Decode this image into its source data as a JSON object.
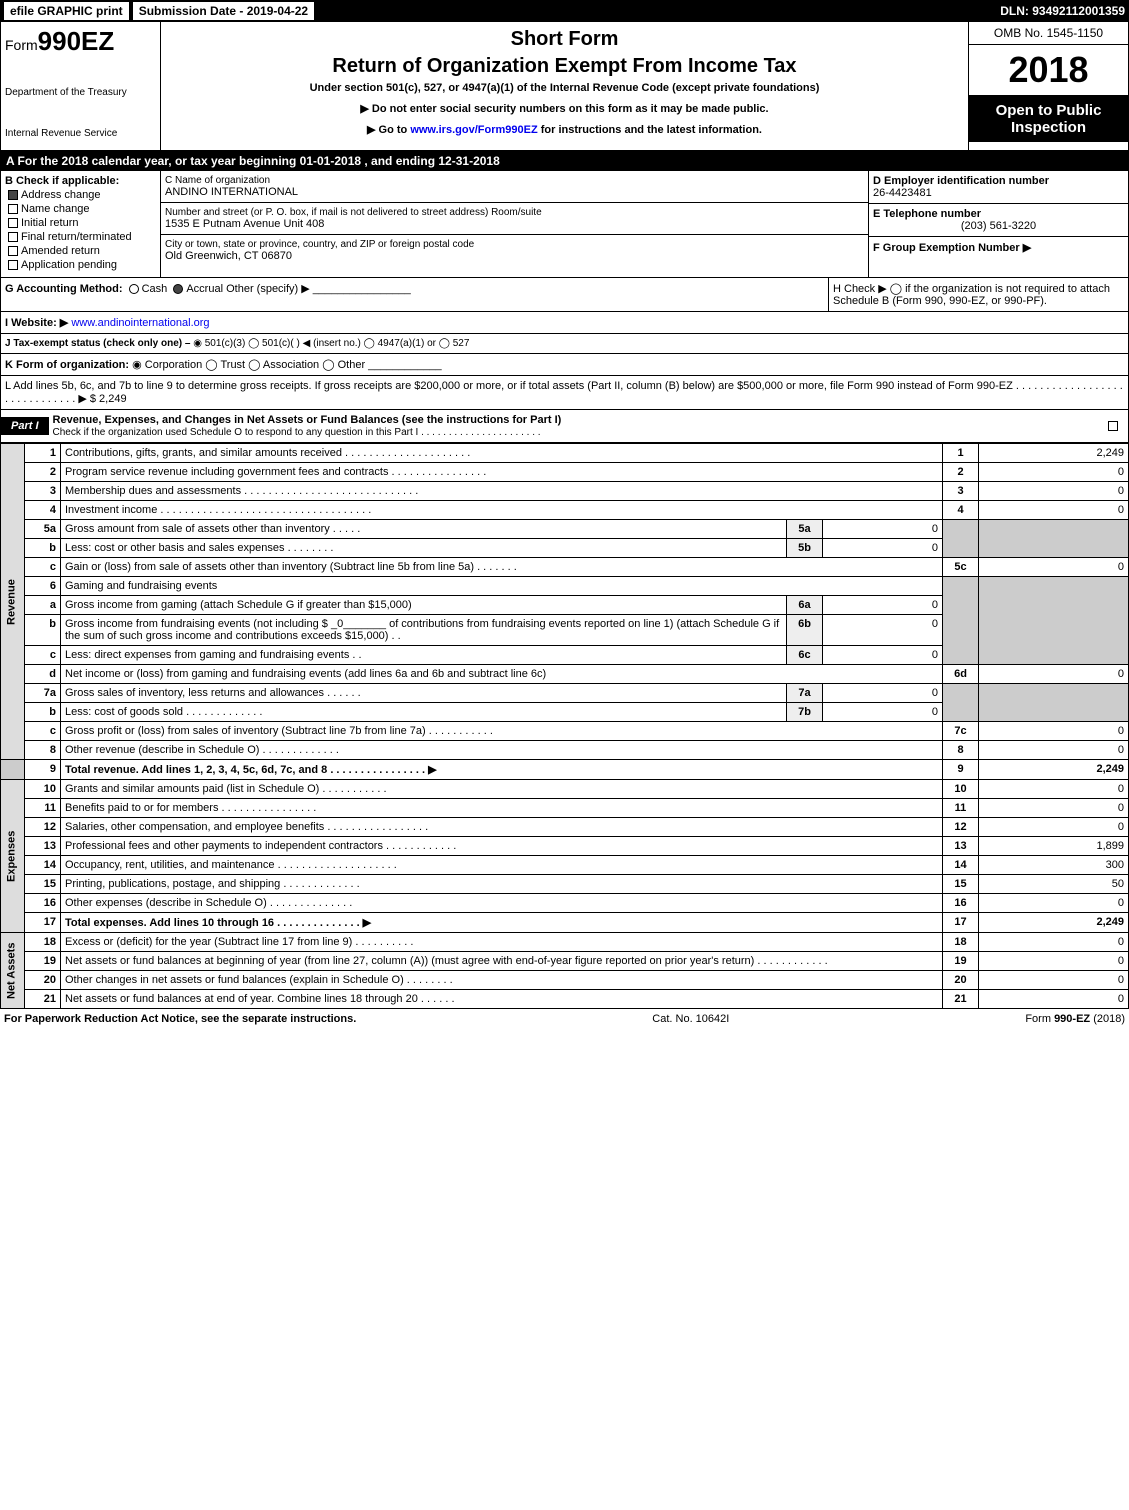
{
  "topbar": {
    "efile": "efile GRAPHIC print",
    "submission_label": "Submission Date - 2019-04-22",
    "dln": "DLN: 93492112001359"
  },
  "formhead": {
    "form_prefix": "Form",
    "form_no": "990EZ",
    "dept1": "Department of the Treasury",
    "dept2": "Internal Revenue Service",
    "short": "Short Form",
    "title": "Return of Organization Exempt From Income Tax",
    "under": "Under section 501(c), 527, or 4947(a)(1) of the Internal Revenue Code (except private foundations)",
    "note1": "▶ Do not enter social security numbers on this form as it may be made public.",
    "note2_pre": "▶ Go to ",
    "note2_link": "www.irs.gov/Form990EZ",
    "note2_post": " for instructions and the latest information.",
    "omb": "OMB No. 1545-1150",
    "year": "2018",
    "open": "Open to Public Inspection"
  },
  "bandA": "A  For the 2018 calendar year, or tax year beginning 01-01-2018           , and ending 12-31-2018",
  "B": {
    "label": "B  Check if applicable:",
    "items": [
      "Address change",
      "Name change",
      "Initial return",
      "Final return/terminated",
      "Amended return",
      "Application pending"
    ]
  },
  "C": {
    "c_label": "C Name of organization",
    "c_val": "ANDINO INTERNATIONAL",
    "addr_label": "Number and street (or P. O. box, if mail is not delivered to street address)     Room/suite",
    "addr_val": "1535 E Putnam Avenue Unit 408",
    "city_label": "City or town, state or province, country, and ZIP or foreign postal code",
    "city_val": "Old Greenwich, CT  06870"
  },
  "D": {
    "d_label": "D Employer identification number",
    "d_val": "26-4423481",
    "e_label": "E Telephone number",
    "e_val": "(203) 561-3220",
    "f_label": "F Group Exemption Number    ▶"
  },
  "G": {
    "label": "G Accounting Method:",
    "opts": [
      "Cash",
      "Accrual",
      "Other (specify) ▶"
    ],
    "selected": "Accrual"
  },
  "H": {
    "text": "H  Check ▶ ◯ if the organization is not required to attach Schedule B (Form 990, 990-EZ, or 990-PF)."
  },
  "I": {
    "label": "I Website: ▶",
    "val": "www.andinointernational.org"
  },
  "J": {
    "label": "J Tax-exempt status (check only one) – ",
    "opts": "◉ 501(c)(3)  ◯ 501(c)(  ) ◀ (insert no.)  ◯ 4947(a)(1) or  ◯ 527"
  },
  "K": {
    "label": "K Form of organization:",
    "opts": "◉ Corporation   ◯ Trust   ◯ Association   ◯ Other"
  },
  "L": {
    "text": "L Add lines 5b, 6c, and 7b to line 9 to determine gross receipts. If gross receipts are $200,000 or more, or if total assets (Part II, column (B) below) are $500,000 or more, file Form 990 instead of Form 990-EZ . . . . . . . . . . . . . . . . . . . . . . . . . . . . . . ▶ $ 2,249"
  },
  "part1": {
    "label": "Part I",
    "title": "Revenue, Expenses, and Changes in Net Assets or Fund Balances (see the instructions for Part I)",
    "sub": "Check if the organization used Schedule O to respond to any question in this Part I . . . . . . . . . . . . . . . . . . . . . .",
    "side_rev": "Revenue",
    "side_exp": "Expenses",
    "side_net": "Net Assets"
  },
  "lines": {
    "l1": {
      "n": "1",
      "d": "Contributions, gifts, grants, and similar amounts received . . . . . . . . . . . . . . . . . . . . .",
      "ln": "1",
      "v": "2,249"
    },
    "l2": {
      "n": "2",
      "d": "Program service revenue including government fees and contracts . . . . . . . . . . . . . . . .",
      "ln": "2",
      "v": "0"
    },
    "l3": {
      "n": "3",
      "d": "Membership dues and assessments . . . . . . . . . . . . . . . . . . . . . . . . . . . . .",
      "ln": "3",
      "v": "0"
    },
    "l4": {
      "n": "4",
      "d": "Investment income . . . . . . . . . . . . . . . . . . . . . . . . . . . . . . . . . . .",
      "ln": "4",
      "v": "0"
    },
    "l5a": {
      "n": "5a",
      "d": "Gross amount from sale of assets other than inventory . . . . .",
      "sn": "5a",
      "sv": "0"
    },
    "l5b": {
      "n": "b",
      "d": "Less: cost or other basis and sales expenses . . . . . . . .",
      "sn": "5b",
      "sv": "0"
    },
    "l5c": {
      "n": "c",
      "d": "Gain or (loss) from sale of assets other than inventory (Subtract line 5b from line 5a) . . . . . . .",
      "ln": "5c",
      "v": "0"
    },
    "l6": {
      "n": "6",
      "d": "Gaming and fundraising events"
    },
    "l6a": {
      "n": "a",
      "d": "Gross income from gaming (attach Schedule G if greater than $15,000)",
      "sn": "6a",
      "sv": "0"
    },
    "l6b": {
      "n": "b",
      "d": "Gross income from fundraising events (not including $ _0_______ of contributions from fundraising events reported on line 1) (attach Schedule G if the sum of such gross income and contributions exceeds $15,000)   .  .",
      "sn": "6b",
      "sv": "0"
    },
    "l6c": {
      "n": "c",
      "d": "Less: direct expenses from gaming and fundraising events    .  .",
      "sn": "6c",
      "sv": "0"
    },
    "l6d": {
      "n": "d",
      "d": "Net income or (loss) from gaming and fundraising events (add lines 6a and 6b and subtract line 6c)",
      "ln": "6d",
      "v": "0"
    },
    "l7a": {
      "n": "7a",
      "d": "Gross sales of inventory, less returns and allowances . . . . . .",
      "sn": "7a",
      "sv": "0"
    },
    "l7b": {
      "n": "b",
      "d": "Less: cost of goods sold       .   .   .   .   .   .   .   .   .   .   .   .   .",
      "sn": "7b",
      "sv": "0"
    },
    "l7c": {
      "n": "c",
      "d": "Gross profit or (loss) from sales of inventory (Subtract line 7b from line 7a) . . . . . . . . . . .",
      "ln": "7c",
      "v": "0"
    },
    "l8": {
      "n": "8",
      "d": "Other revenue (describe in Schedule O)            .   .   .   .   .   .   .   .   .   .   .   .   .",
      "ln": "8",
      "v": "0"
    },
    "l9": {
      "n": "9",
      "d": "Total revenue. Add lines 1, 2, 3, 4, 5c, 6d, 7c, and 8 .  .  .  .  .  .  .  .  .  .  .  .  .  .  .  .   ▶",
      "ln": "9",
      "v": "2,249"
    },
    "l10": {
      "n": "10",
      "d": "Grants and similar amounts paid (list in Schedule O)         .   .   .   .   .   .   .   .   .   .   .",
      "ln": "10",
      "v": "0"
    },
    "l11": {
      "n": "11",
      "d": "Benefits paid to or for members           .   .   .   .   .   .   .   .   .   .   .   .   .   .   .   .",
      "ln": "11",
      "v": "0"
    },
    "l12": {
      "n": "12",
      "d": "Salaries, other compensation, and employee benefits .  .  .  .  .  .  .  .  .  .  .  .  .  .  .  .  .",
      "ln": "12",
      "v": "0"
    },
    "l13": {
      "n": "13",
      "d": "Professional fees and other payments to independent contractors .  .  .  .  .  .  .  .  .  .  .  .",
      "ln": "13",
      "v": "1,899"
    },
    "l14": {
      "n": "14",
      "d": "Occupancy, rent, utilities, and maintenance .  .  .  .  .  .  .  .  .  .  .  .  .  .  .  .  .  .  .  .",
      "ln": "14",
      "v": "300"
    },
    "l15": {
      "n": "15",
      "d": "Printing, publications, postage, and shipping         .   .   .   .   .   .   .   .   .   .   .   .   .",
      "ln": "15",
      "v": "50"
    },
    "l16": {
      "n": "16",
      "d": "Other expenses (describe in Schedule O)          .   .   .   .   .   .   .   .   .   .   .   .   .   .",
      "ln": "16",
      "v": "0"
    },
    "l17": {
      "n": "17",
      "d": "Total expenses. Add lines 10 through 16        .   .   .   .   .   .   .   .   .   .   .   .   .   .   ▶",
      "ln": "17",
      "v": "2,249"
    },
    "l18": {
      "n": "18",
      "d": "Excess or (deficit) for the year (Subtract line 17 from line 9)       .   .   .   .   .   .   .   .   .   .",
      "ln": "18",
      "v": "0"
    },
    "l19": {
      "n": "19",
      "d": "Net assets or fund balances at beginning of year (from line 27, column (A)) (must agree with end-of-year figure reported on prior year's return)          .   .   .   .   .   .   .   .   .   .   .   .",
      "ln": "19",
      "v": "0"
    },
    "l20": {
      "n": "20",
      "d": "Other changes in net assets or fund balances (explain in Schedule O)    .   .   .   .   .   .   .   .",
      "ln": "20",
      "v": "0"
    },
    "l21": {
      "n": "21",
      "d": "Net assets or fund balances at end of year. Combine lines 18 through 20       .   .   .   .   .   .",
      "ln": "21",
      "v": "0"
    }
  },
  "footer": {
    "left": "For Paperwork Reduction Act Notice, see the separate instructions.",
    "mid": "Cat. No. 10642I",
    "right": "Form 990-EZ (2018)"
  }
}
